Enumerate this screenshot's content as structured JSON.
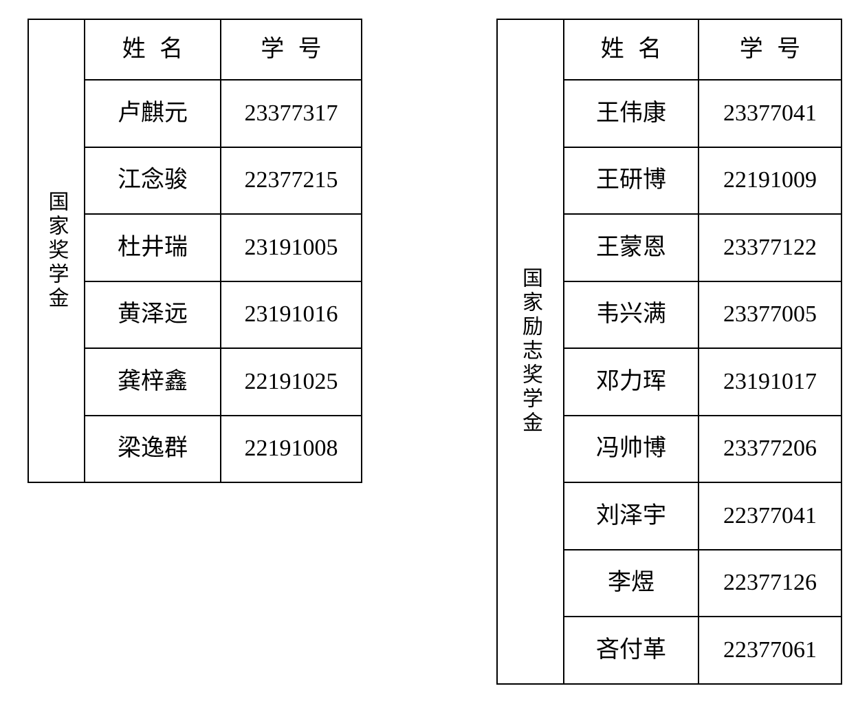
{
  "page": {
    "background_color": "#ffffff",
    "border_color": "#000000",
    "text_color": "#000000"
  },
  "tables": [
    {
      "category": "国家奖学金",
      "headers": {
        "name": "姓名",
        "id": "学号"
      },
      "rows": [
        {
          "name": "卢麒元",
          "id": "23377317"
        },
        {
          "name": "江念骏",
          "id": "22377215"
        },
        {
          "name": "杜井瑞",
          "id": "23191005"
        },
        {
          "name": "黄泽远",
          "id": "23191016"
        },
        {
          "name": "龚梓鑫",
          "id": "22191025"
        },
        {
          "name": "梁逸群",
          "id": "22191008"
        }
      ]
    },
    {
      "category": "国家励志奖学金",
      "headers": {
        "name": "姓名",
        "id": "学号"
      },
      "rows": [
        {
          "name": "王伟康",
          "id": "23377041"
        },
        {
          "name": "王研博",
          "id": "22191009"
        },
        {
          "name": "王蒙恩",
          "id": "23377122"
        },
        {
          "name": "韦兴满",
          "id": "23377005"
        },
        {
          "name": "邓力珲",
          "id": "23191017"
        },
        {
          "name": "冯帅博",
          "id": "23377206"
        },
        {
          "name": "刘泽宇",
          "id": "22377041"
        },
        {
          "name": "李煜",
          "id": "22377126"
        },
        {
          "name": "吝付革",
          "id": "22377061"
        }
      ]
    }
  ]
}
